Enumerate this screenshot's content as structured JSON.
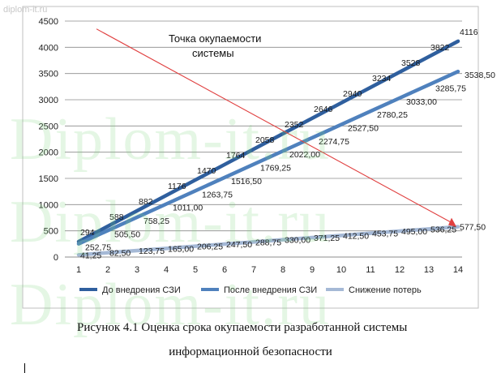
{
  "watermark": {
    "small": "diplom-it.ru",
    "big": "Diplom-it.ru"
  },
  "annotation": {
    "line1": "Точка окупаемости",
    "line2": "системы"
  },
  "caption": {
    "line1": "Рисунок 4.1 Оценка срока окупаемости разработанной системы",
    "line2": "информационной безопасности"
  },
  "chart_data": {
    "type": "line",
    "x": [
      1,
      2,
      3,
      4,
      5,
      6,
      7,
      8,
      9,
      10,
      11,
      12,
      13,
      14
    ],
    "ylim": [
      0,
      4500
    ],
    "yticks": [
      0,
      500,
      1000,
      1500,
      2000,
      2500,
      3000,
      3500,
      4000,
      4500
    ],
    "grid": true,
    "legend_position": "bottom",
    "series": [
      {
        "name": "До внедрения СЗИ",
        "color": "#2f5f9e",
        "values": [
          294,
          588,
          882,
          1176,
          1470,
          1764,
          2058,
          2352,
          2646,
          2940,
          3234,
          3528,
          3822,
          4116
        ],
        "labels": [
          "294",
          "588",
          "882",
          "1176",
          "1470",
          "1764",
          "2058",
          "2352",
          "2646",
          "2940",
          "3234",
          "3528",
          "3822",
          "4116"
        ]
      },
      {
        "name": "После внедрения СЗИ",
        "color": "#4f81bd",
        "values": [
          252.75,
          505.5,
          758.25,
          1011,
          1263.75,
          1516.5,
          1769.25,
          2022,
          2274.75,
          2527.5,
          2780.25,
          3033,
          3285.75,
          3538.5
        ],
        "labels": [
          "252,75",
          "505,50",
          "758,25",
          "1011,00",
          "1263,75",
          "1516,50",
          "1769,25",
          "2022,00",
          "2274,75",
          "2527,50",
          "2780,25",
          "3033,00",
          "3285,75",
          "3538,50"
        ]
      },
      {
        "name": "Снижение потерь",
        "color": "#a5b9d6",
        "values": [
          41.25,
          82.5,
          123.75,
          165,
          206.25,
          247.5,
          288.75,
          330,
          371.25,
          412.5,
          453.75,
          495,
          536.25,
          577.5
        ],
        "labels": [
          "41,25",
          "82,50",
          "123,75",
          "165,00",
          "206,25",
          "247,50",
          "288,75",
          "330,00",
          "371,25",
          "412,50",
          "453,75",
          "495,00",
          "536,25",
          "577,50"
        ]
      }
    ],
    "payback_line": {
      "x": [
        1,
        14
      ],
      "y": [
        4350,
        577.5
      ],
      "color": "#e04040"
    }
  }
}
